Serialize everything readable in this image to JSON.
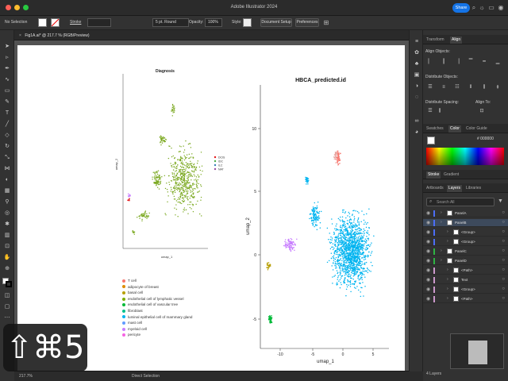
{
  "window": {
    "title": "Adobe Illustrator 2024",
    "share_label": "Share"
  },
  "control_bar": {
    "selection": "No Selection",
    "stroke_label": "Stroke",
    "brush": "5 pt. Round",
    "opacity_label": "Opacity:",
    "opacity_value": "100%",
    "style_label": "Style:",
    "document_setup": "Document Setup",
    "preferences": "Preferences"
  },
  "document_tab": {
    "label": "Fig1A.ai* @ 217.7 % (RGB/Preview)"
  },
  "status_bar": {
    "zoom": "217.7%",
    "tool": "Direct Selection"
  },
  "panels": {
    "top_tabs": [
      "Transform",
      "Align"
    ],
    "align_objects": "Align Objects:",
    "distribute_objects": "Distribute Objects:",
    "distribute_spacing": "Distribute Spacing:",
    "align_to": "Align To:",
    "color_tabs": [
      "Swatches",
      "Color",
      "Color Guide"
    ],
    "hex_value": "000000",
    "stroke_tabs": [
      "Stroke",
      "Gradient"
    ],
    "layer_tabs": [
      "Artboards",
      "Layers",
      "Libraries"
    ],
    "search_placeholder": "Search All",
    "layers": [
      {
        "name": "PanelA",
        "color": "#4c6ef5"
      },
      {
        "name": "PanelB",
        "color": "#4c6ef5"
      },
      {
        "name": "<Group>",
        "color": "#4c6ef5"
      },
      {
        "name": "<Group>",
        "color": "#4c6ef5"
      },
      {
        "name": "PanelC",
        "color": "#2fb344"
      },
      {
        "name": "PanelD",
        "color": "#2fb344"
      },
      {
        "name": "<Path>",
        "color": "#c9c"
      },
      {
        "name": "Text",
        "color": "#c9c"
      },
      {
        "name": "<Group>",
        "color": "#c9c"
      },
      {
        "name": "<Path>",
        "color": "#c9c"
      }
    ],
    "layers_count": "4 Layers"
  },
  "shortcut_overlay": "⇧⌘5",
  "artboard": {
    "left_plot": {
      "title": "Diagnosis",
      "xlabel": "umap_1",
      "ylabel": "umap_2",
      "legend": [
        {
          "label": "DCIS",
          "color": "#e41a1c"
        },
        {
          "label": "IDC",
          "color": "#4daf4a"
        },
        {
          "label": "ILC",
          "color": "#377eb8"
        },
        {
          "label": "NAT",
          "color": "#984ea3"
        }
      ],
      "main_color": "#7aa81f"
    },
    "right_plot": {
      "title": "HBCA_predicted.id",
      "xlabel": "umap_1",
      "ylabel": "umap_2",
      "xticks": [
        "-10",
        "-5",
        "0",
        "5"
      ],
      "yticks": [
        "10",
        "5",
        "0",
        "-5"
      ]
    },
    "cell_legend": [
      {
        "label": "T cell",
        "color": "#f8766d"
      },
      {
        "label": "adipocyte of breast",
        "color": "#de8c00"
      },
      {
        "label": "basal cell",
        "color": "#b79f00"
      },
      {
        "label": "endothelial cell of lymphatic vessel",
        "color": "#7cae00"
      },
      {
        "label": "endothelial cell of vascular tree",
        "color": "#00ba38"
      },
      {
        "label": "fibroblast",
        "color": "#00c08b"
      },
      {
        "label": "luminal epithelial cell of mammary gland",
        "color": "#00b4f0"
      },
      {
        "label": "mast cell",
        "color": "#619cff"
      },
      {
        "label": "myeloid cell",
        "color": "#c77cff"
      },
      {
        "label": "pericyte",
        "color": "#f564e3"
      }
    ]
  }
}
